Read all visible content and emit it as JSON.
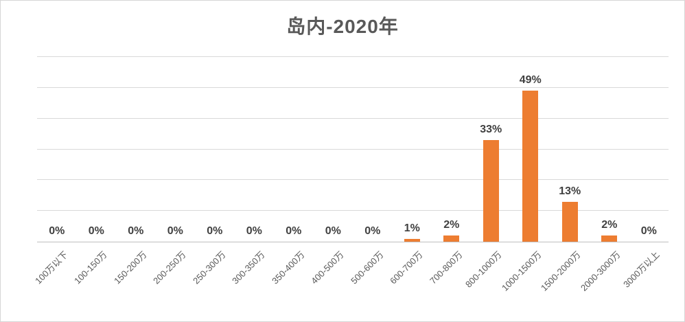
{
  "chart_data": {
    "type": "bar",
    "title": "岛内-2020年",
    "categories": [
      "100万以下",
      "100-150万",
      "150-200万",
      "200-250万",
      "250-300万",
      "300-350万",
      "350-400万",
      "400-500万",
      "500-600万",
      "600-700万",
      "700-800万",
      "800-1000万",
      "1000-1500万",
      "1500-2000万",
      "2000-3000万",
      "3000万以上"
    ],
    "values": [
      0,
      0,
      0,
      0,
      0,
      0,
      0,
      0,
      0,
      1,
      2,
      33,
      49,
      13,
      2,
      0
    ],
    "data_labels": [
      "0%",
      "0%",
      "0%",
      "0%",
      "0%",
      "0%",
      "0%",
      "0%",
      "0%",
      "1%",
      "2%",
      "33%",
      "49%",
      "13%",
      "2%",
      "0%"
    ],
    "xlabel": "",
    "ylabel": "",
    "ylim": [
      0,
      60
    ],
    "y_step": 10,
    "y_axis_labels_visible": false,
    "grid": "horizontal",
    "legend": "none",
    "colors": {
      "bar": "#ed7d31",
      "gridline": "#d9d9d9",
      "axis_line": "#bfbfbf",
      "title_text": "#595959",
      "data_label_text": "#404040",
      "category_label_text": "#595959"
    }
  }
}
